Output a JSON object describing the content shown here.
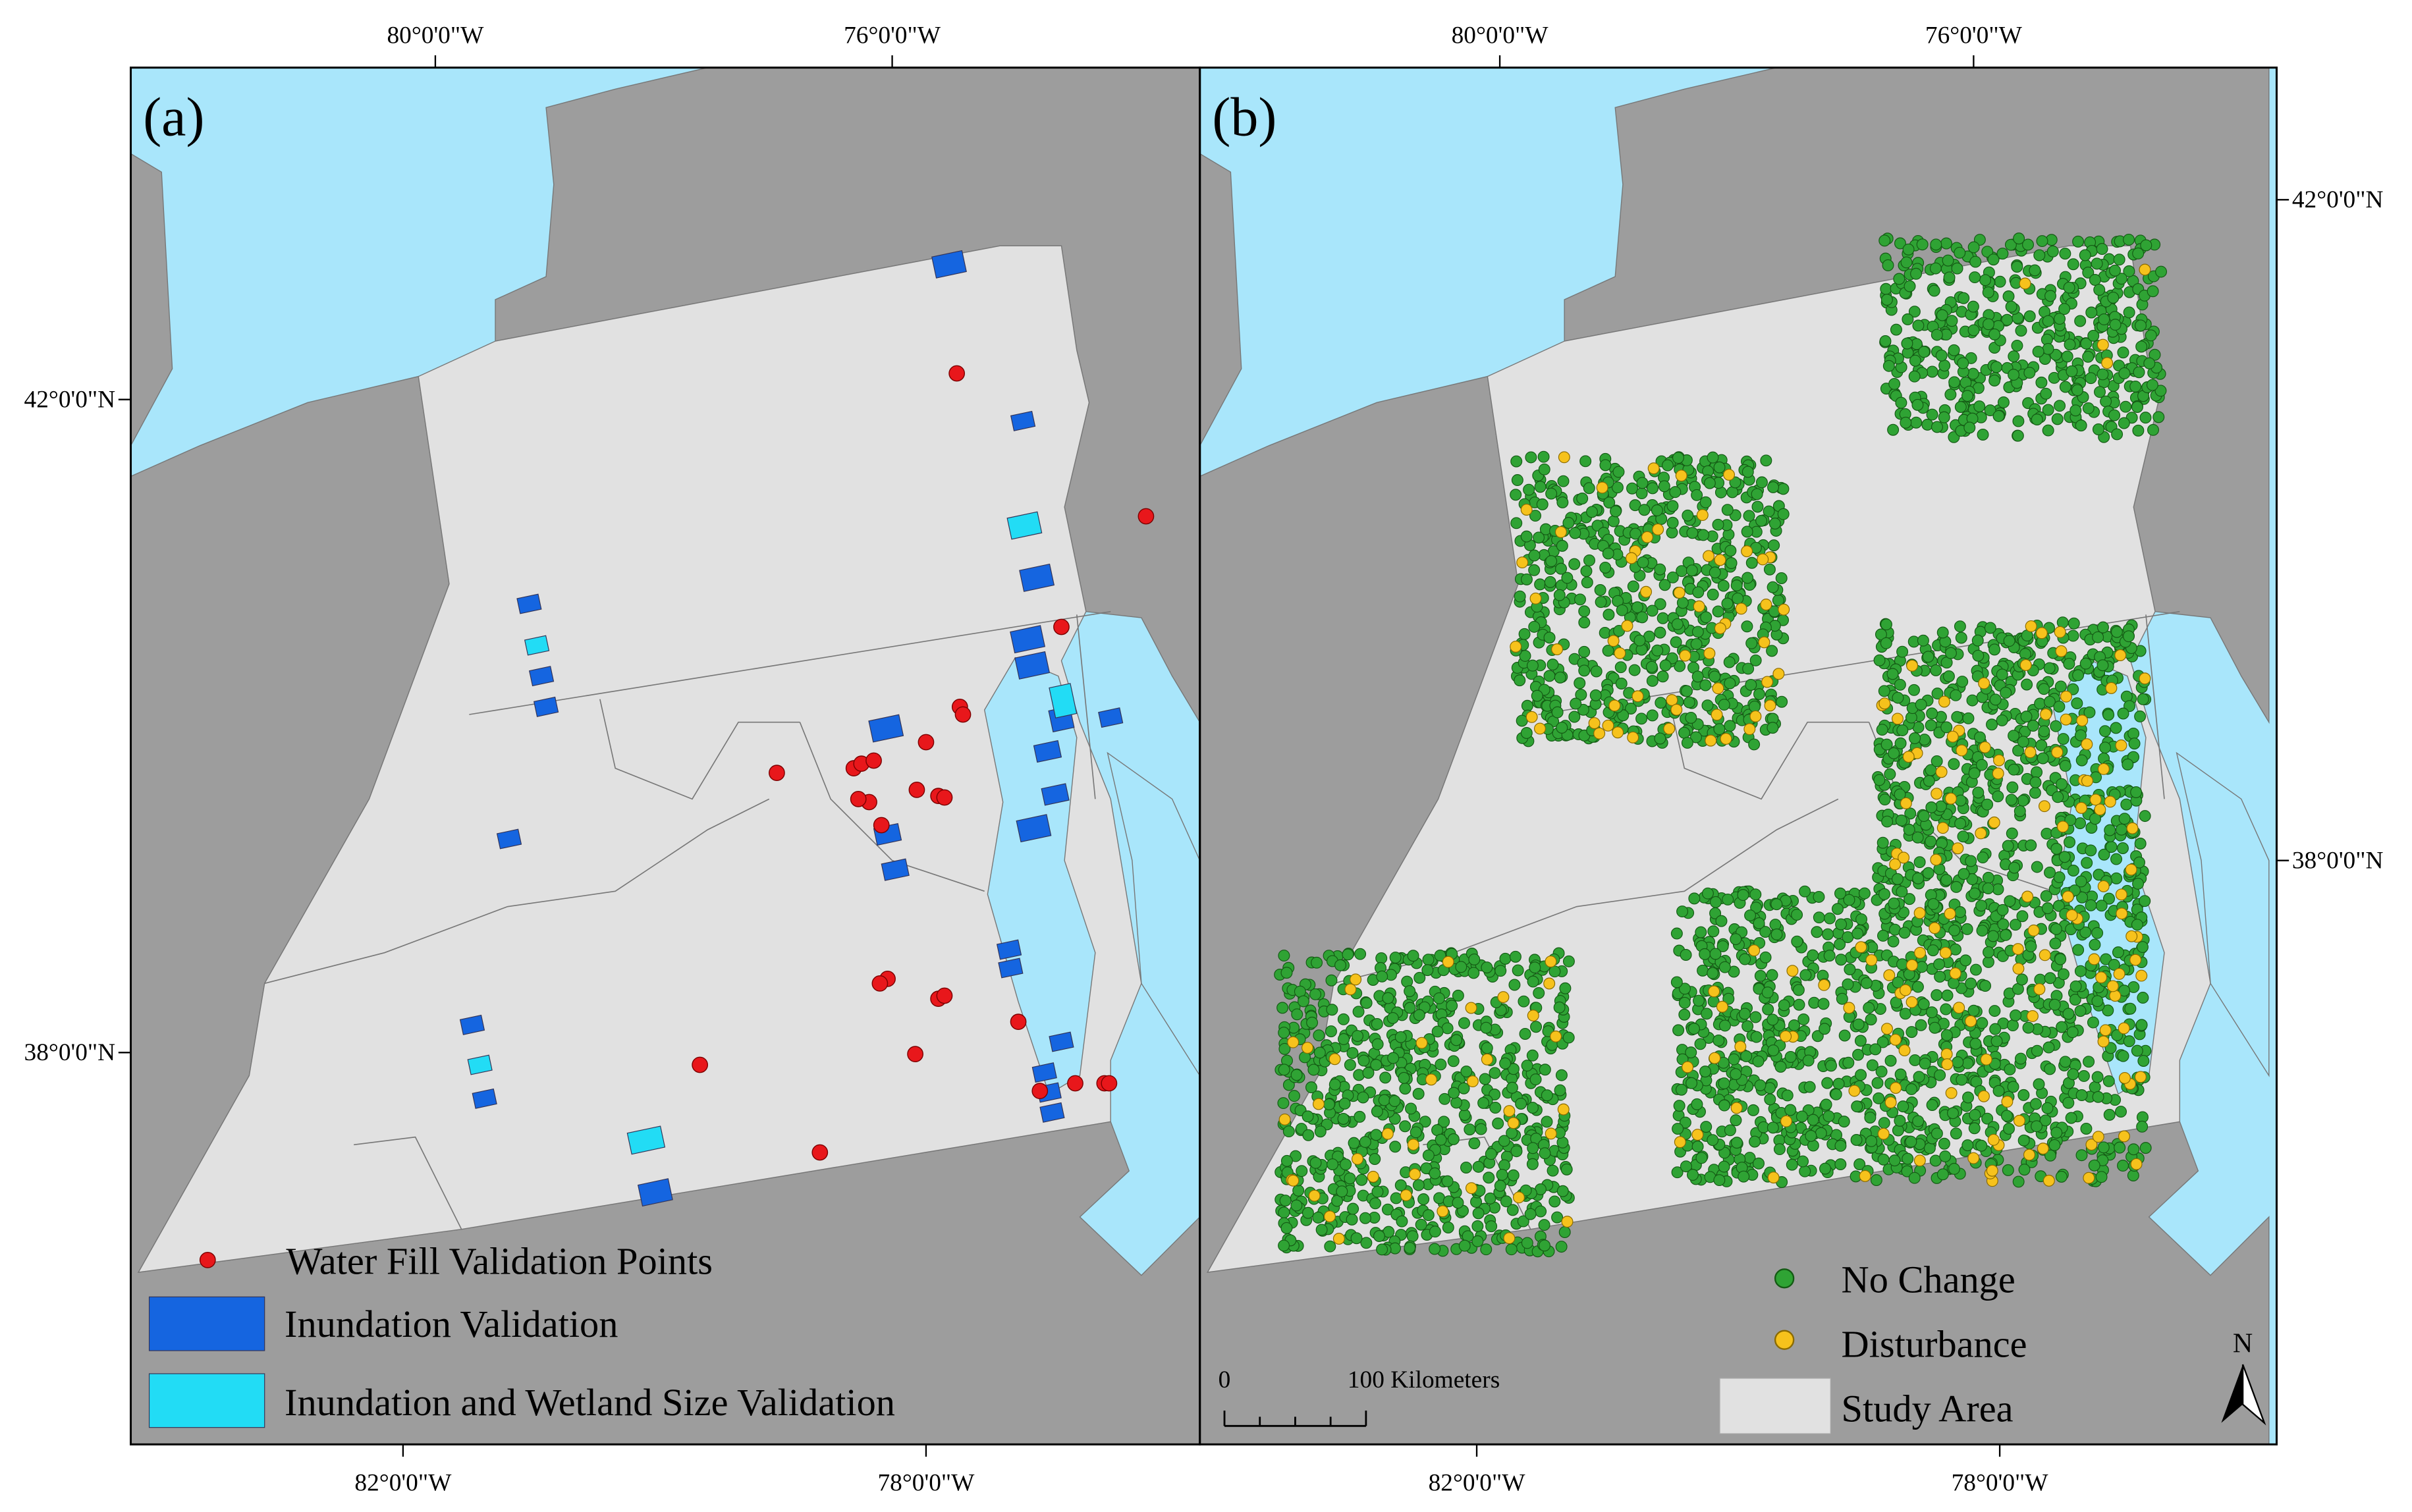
{
  "figure": {
    "panels": [
      {
        "label": "(a)",
        "top_ticks": [
          "80°0'0\"W",
          "76°0'0\"W"
        ],
        "side_ticks": [
          "42°0'0\"N",
          "38°0'0\"N"
        ],
        "bottom_ticks": [
          "82°0'0\"W",
          "78°0'0\"W"
        ],
        "legend": [
          "Water Fill Validation Points",
          "Inundation Validation",
          "Inundation and Wetland Size Validation"
        ]
      },
      {
        "label": "(b)",
        "top_ticks": [
          "80°0'0\"W",
          "76°0'0\"W"
        ],
        "side_ticks": [
          "42°0'0\"N",
          "38°0'0\"N"
        ],
        "bottom_ticks": [
          "82°0'0\"W",
          "78°0'0\"W"
        ],
        "legend": [
          "No Change",
          "Disturbance",
          "Study Area"
        ],
        "scale_bar": {
          "start": "0",
          "end": "100 Kilometers"
        },
        "north_arrow": "N"
      }
    ]
  }
}
